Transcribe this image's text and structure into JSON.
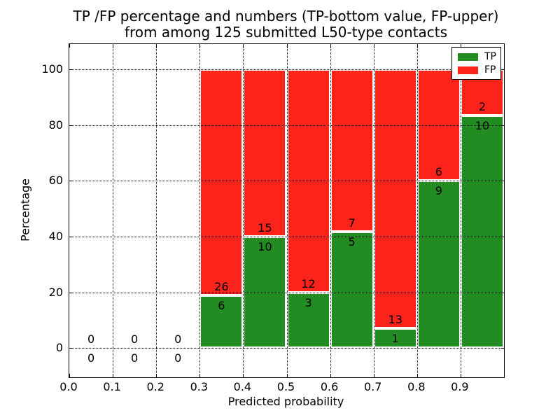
{
  "figure": {
    "title_line1": "TP /FP percentage and numbers (TP-bottom value, FP-upper)",
    "title_line2": "from among 125 submitted L50-type contacts"
  },
  "legend": {
    "items": [
      {
        "label": "TP",
        "color": "#228b22"
      },
      {
        "label": "FP",
        "color": "#fb231a"
      }
    ]
  },
  "chart_data": {
    "type": "bar",
    "stacked": true,
    "normalized_to_percent": true,
    "title": "TP /FP percentage and numbers (TP-bottom value, FP-upper)\nfrom among 125 submitted L50-type contacts",
    "xlabel": "Predicted probability",
    "ylabel": "Percentage",
    "total_contacts": 125,
    "bin_width": 0.1,
    "bin_starts": [
      0.0,
      0.1,
      0.2,
      0.3,
      0.4,
      0.5,
      0.6,
      0.7,
      0.8,
      0.9
    ],
    "series": [
      {
        "name": "TP",
        "color": "#228b22",
        "counts": [
          0,
          0,
          0,
          6,
          10,
          3,
          5,
          1,
          9,
          10
        ]
      },
      {
        "name": "FP",
        "color": "#fb231a",
        "counts": [
          0,
          0,
          0,
          26,
          15,
          12,
          7,
          13,
          6,
          2
        ]
      }
    ],
    "tp_percent_of_bin": [
      null,
      null,
      null,
      18.75,
      40.0,
      20.0,
      41.67,
      7.14,
      60.0,
      83.33
    ],
    "xticks": [
      0.0,
      0.1,
      0.2,
      0.3,
      0.4,
      0.5,
      0.6,
      0.7,
      0.8,
      0.9
    ],
    "xtick_labels": [
      "0.0",
      "0.1",
      "0.2",
      "0.3",
      "0.4",
      "0.5",
      "0.6",
      "0.7",
      "0.8",
      "0.9"
    ],
    "yticks": [
      0,
      20,
      40,
      60,
      80,
      100
    ],
    "ytick_labels": [
      "0",
      "20",
      "40",
      "60",
      "80",
      "100"
    ],
    "xlim": [
      0.0,
      1.0
    ],
    "ylim": [
      -10.5,
      109.0
    ],
    "grid": true,
    "grid_linestyle": "dotted",
    "bar_edge_color": "#ffffff",
    "legend_position": "upper right"
  }
}
